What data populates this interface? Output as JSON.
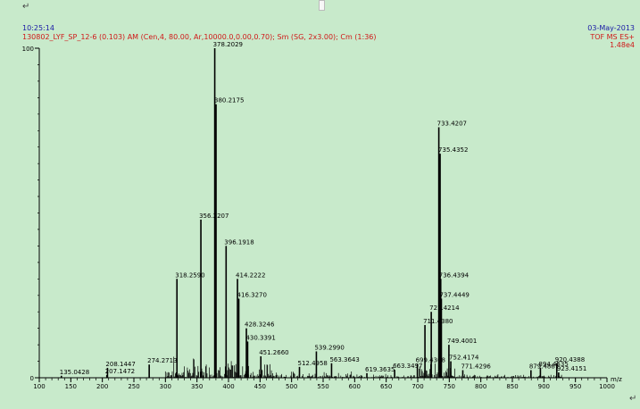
{
  "header": {
    "time": "10:25:14",
    "description": "130802_LYF_SP_12-6 (0.103) AM (Cen,4, 80.00, Ar,10000.0,0.00,0.70); Sm (SG, 2x3.00); Cm (1:36)",
    "date": "03-May-2013",
    "mode": "TOF MS ES+",
    "intensity": "1.48e4"
  },
  "return_mark": "↵",
  "colors": {
    "background": "#c8eacb",
    "spectrum": "#000000",
    "header_text": "#1a1aa6",
    "desc_text": "#d01818"
  },
  "chart_data": {
    "type": "bar",
    "xlabel": "m/z",
    "ylabel": "",
    "xlim": [
      100,
      1000
    ],
    "ylim": [
      0,
      100
    ],
    "x_ticks": [
      100,
      150,
      200,
      250,
      300,
      350,
      400,
      450,
      500,
      550,
      600,
      650,
      700,
      750,
      800,
      850,
      900,
      950,
      1000
    ],
    "y_ticks": [
      0,
      100
    ],
    "grid": false,
    "peaks": [
      {
        "mz": 135.0428,
        "intensity": 0.6,
        "label": "135.0428"
      },
      {
        "mz": 207.1472,
        "intensity": 0.8,
        "label": "207.1472"
      },
      {
        "mz": 208.1447,
        "intensity": 3.0,
        "label": "208.1447"
      },
      {
        "mz": 274.2713,
        "intensity": 4.0,
        "label": "274.2713"
      },
      {
        "mz": 318.259,
        "intensity": 30.0,
        "label": "318.2590"
      },
      {
        "mz": 356.2207,
        "intensity": 48.0,
        "label": "356.2207"
      },
      {
        "mz": 378.2029,
        "intensity": 100.0,
        "label": "378.2029"
      },
      {
        "mz": 380.2175,
        "intensity": 83.0,
        "label": "380.2175"
      },
      {
        "mz": 396.1918,
        "intensity": 40.0,
        "label": "396.1918"
      },
      {
        "mz": 414.2222,
        "intensity": 30.0,
        "label": "414.2222"
      },
      {
        "mz": 416.327,
        "intensity": 24.0,
        "label": "416.3270"
      },
      {
        "mz": 428.3246,
        "intensity": 15.0,
        "label": "428.3246"
      },
      {
        "mz": 430.3391,
        "intensity": 11.0,
        "label": "430.3391"
      },
      {
        "mz": 451.266,
        "intensity": 6.5,
        "label": "451.2660"
      },
      {
        "mz": 512.4958,
        "intensity": 3.3,
        "label": "512.4958"
      },
      {
        "mz": 539.299,
        "intensity": 8.0,
        "label": "539.2990"
      },
      {
        "mz": 563.3643,
        "intensity": 4.4,
        "label": "563.3643"
      },
      {
        "mz": 619.3635,
        "intensity": 1.4,
        "label": "619.3635"
      },
      {
        "mz": 663.3497,
        "intensity": 2.4,
        "label": "663.3497"
      },
      {
        "mz": 699.4308,
        "intensity": 4.2,
        "label": "699.4308"
      },
      {
        "mz": 711.438,
        "intensity": 16.0,
        "label": "711.4380"
      },
      {
        "mz": 721.4214,
        "intensity": 20.0,
        "label": "721.4214"
      },
      {
        "mz": 733.4207,
        "intensity": 76.0,
        "label": "733.4207"
      },
      {
        "mz": 735.4352,
        "intensity": 68.0,
        "label": "735.4352"
      },
      {
        "mz": 736.4394,
        "intensity": 30.0,
        "label": "736.4394"
      },
      {
        "mz": 737.4449,
        "intensity": 24.0,
        "label": "737.4449"
      },
      {
        "mz": 749.4001,
        "intensity": 10.0,
        "label": "749.4001"
      },
      {
        "mz": 752.4174,
        "intensity": 5.0,
        "label": "752.4174"
      },
      {
        "mz": 771.4296,
        "intensity": 2.3,
        "label": "771.4296"
      },
      {
        "mz": 879.4887,
        "intensity": 2.3,
        "label": "879.4887"
      },
      {
        "mz": 894.4535,
        "intensity": 3.0,
        "label": "894.4535"
      },
      {
        "mz": 920.4388,
        "intensity": 4.4,
        "label": "920.4388"
      },
      {
        "mz": 923.4151,
        "intensity": 1.6,
        "label": "923.4151"
      }
    ]
  }
}
